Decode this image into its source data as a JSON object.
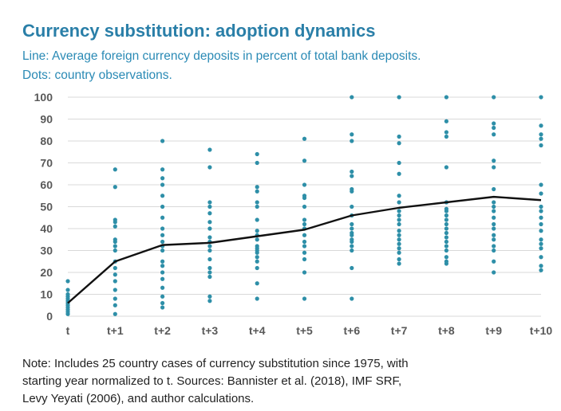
{
  "header": {
    "title": "Currency substitution: adoption dynamics",
    "subtitle_line1": "Line: Average foreign currency deposits in percent of total bank deposits.",
    "subtitle_line2": "Dots: country observations."
  },
  "note": {
    "line1": "Note: Includes 25 country cases of currency substitution since 1975, with",
    "line2": "starting year normalized to t. Sources: Bannister et al. (2018), IMF SRF,",
    "line3": "Levy Yeyati (2006), and author calculations."
  },
  "chart_data": {
    "type": "line",
    "categories": [
      "t",
      "t+1",
      "t+2",
      "t+3",
      "t+4",
      "t+5",
      "t+6",
      "t+7",
      "t+8",
      "t+9",
      "t+10"
    ],
    "ylim": [
      0,
      100
    ],
    "yticks": [
      0,
      10,
      20,
      30,
      40,
      50,
      60,
      70,
      80,
      90,
      100
    ],
    "grid": "horizontal",
    "series": [
      {
        "type": "line",
        "values": [
          6,
          25,
          32.5,
          33.5,
          36.5,
          39.5,
          46,
          49.5,
          52,
          54.5,
          53
        ]
      },
      {
        "type": "scatter",
        "points": [
          [
            [
              0,
              1
            ],
            [
              0,
              2
            ],
            [
              0,
              3
            ],
            [
              0,
              4
            ],
            [
              0,
              5
            ],
            [
              0,
              6
            ],
            [
              0,
              7
            ],
            [
              0,
              8
            ],
            [
              0,
              9
            ],
            [
              0,
              10
            ],
            [
              0,
              12
            ],
            [
              0,
              16
            ]
          ],
          [
            [
              1,
              1
            ],
            [
              1,
              5
            ],
            [
              1,
              8
            ],
            [
              1,
              12
            ],
            [
              1,
              16
            ],
            [
              1,
              19
            ],
            [
              1,
              22
            ],
            [
              1,
              25
            ],
            [
              1,
              30
            ],
            [
              1,
              32
            ],
            [
              1,
              34
            ],
            [
              1,
              35
            ],
            [
              1,
              41
            ],
            [
              1,
              43
            ],
            [
              1,
              44
            ],
            [
              1,
              59
            ],
            [
              1,
              67
            ]
          ],
          [
            [
              2,
              4
            ],
            [
              2,
              6
            ],
            [
              2,
              9
            ],
            [
              2,
              13
            ],
            [
              2,
              17
            ],
            [
              2,
              20
            ],
            [
              2,
              23
            ],
            [
              2,
              25
            ],
            [
              2,
              30
            ],
            [
              2,
              32
            ],
            [
              2,
              34
            ],
            [
              2,
              37
            ],
            [
              2,
              40
            ],
            [
              2,
              45
            ],
            [
              2,
              50
            ],
            [
              2,
              55
            ],
            [
              2,
              60
            ],
            [
              2,
              63
            ],
            [
              2,
              67
            ],
            [
              2,
              80
            ]
          ],
          [
            [
              3,
              7
            ],
            [
              3,
              9
            ],
            [
              3,
              18
            ],
            [
              3,
              20
            ],
            [
              3,
              22
            ],
            [
              3,
              26
            ],
            [
              3,
              30
            ],
            [
              3,
              32
            ],
            [
              3,
              34
            ],
            [
              3,
              36
            ],
            [
              3,
              40
            ],
            [
              3,
              43
            ],
            [
              3,
              47
            ],
            [
              3,
              50
            ],
            [
              3,
              52
            ],
            [
              3,
              68
            ],
            [
              3,
              76
            ]
          ],
          [
            [
              4,
              8
            ],
            [
              4,
              15
            ],
            [
              4,
              22
            ],
            [
              4,
              25
            ],
            [
              4,
              27
            ],
            [
              4,
              29
            ],
            [
              4,
              30
            ],
            [
              4,
              31
            ],
            [
              4,
              32
            ],
            [
              4,
              35
            ],
            [
              4,
              37
            ],
            [
              4,
              39
            ],
            [
              4,
              44
            ],
            [
              4,
              50
            ],
            [
              4,
              52
            ],
            [
              4,
              57
            ],
            [
              4,
              59
            ],
            [
              4,
              70
            ],
            [
              4,
              74
            ]
          ],
          [
            [
              5,
              8
            ],
            [
              5,
              20
            ],
            [
              5,
              26
            ],
            [
              5,
              29
            ],
            [
              5,
              32
            ],
            [
              5,
              34
            ],
            [
              5,
              37
            ],
            [
              5,
              40
            ],
            [
              5,
              42
            ],
            [
              5,
              44
            ],
            [
              5,
              50
            ],
            [
              5,
              54
            ],
            [
              5,
              55
            ],
            [
              5,
              60
            ],
            [
              5,
              71
            ],
            [
              5,
              81
            ]
          ],
          [
            [
              6,
              8
            ],
            [
              6,
              22
            ],
            [
              6,
              30
            ],
            [
              6,
              32
            ],
            [
              6,
              34
            ],
            [
              6,
              35
            ],
            [
              6,
              37
            ],
            [
              6,
              38
            ],
            [
              6,
              40
            ],
            [
              6,
              42
            ],
            [
              6,
              46
            ],
            [
              6,
              50
            ],
            [
              6,
              57
            ],
            [
              6,
              58
            ],
            [
              6,
              64
            ],
            [
              6,
              66
            ],
            [
              6,
              80
            ],
            [
              6,
              83
            ],
            [
              6,
              100
            ]
          ],
          [
            [
              7,
              24
            ],
            [
              7,
              26
            ],
            [
              7,
              29
            ],
            [
              7,
              31
            ],
            [
              7,
              33
            ],
            [
              7,
              35
            ],
            [
              7,
              37
            ],
            [
              7,
              39
            ],
            [
              7,
              42
            ],
            [
              7,
              44
            ],
            [
              7,
              46
            ],
            [
              7,
              48
            ],
            [
              7,
              52
            ],
            [
              7,
              55
            ],
            [
              7,
              65
            ],
            [
              7,
              70
            ],
            [
              7,
              79
            ],
            [
              7,
              82
            ],
            [
              7,
              100
            ]
          ],
          [
            [
              8,
              24
            ],
            [
              8,
              25
            ],
            [
              8,
              27
            ],
            [
              8,
              30
            ],
            [
              8,
              32
            ],
            [
              8,
              34
            ],
            [
              8,
              36
            ],
            [
              8,
              38
            ],
            [
              8,
              40
            ],
            [
              8,
              42
            ],
            [
              8,
              44
            ],
            [
              8,
              46
            ],
            [
              8,
              48
            ],
            [
              8,
              49
            ],
            [
              8,
              52
            ],
            [
              8,
              68
            ],
            [
              8,
              82
            ],
            [
              8,
              84
            ],
            [
              8,
              89
            ],
            [
              8,
              100
            ]
          ],
          [
            [
              9,
              20
            ],
            [
              9,
              25
            ],
            [
              9,
              30
            ],
            [
              9,
              32
            ],
            [
              9,
              35
            ],
            [
              9,
              37
            ],
            [
              9,
              40
            ],
            [
              9,
              42
            ],
            [
              9,
              45
            ],
            [
              9,
              48
            ],
            [
              9,
              50
            ],
            [
              9,
              52
            ],
            [
              9,
              58
            ],
            [
              9,
              68
            ],
            [
              9,
              71
            ],
            [
              9,
              83
            ],
            [
              9,
              86
            ],
            [
              9,
              88
            ],
            [
              9,
              100
            ]
          ],
          [
            [
              10,
              21
            ],
            [
              10,
              23
            ],
            [
              10,
              27
            ],
            [
              10,
              31
            ],
            [
              10,
              33
            ],
            [
              10,
              35
            ],
            [
              10,
              39
            ],
            [
              10,
              42
            ],
            [
              10,
              45
            ],
            [
              10,
              48
            ],
            [
              10,
              50
            ],
            [
              10,
              56
            ],
            [
              10,
              60
            ],
            [
              10,
              78
            ],
            [
              10,
              81
            ],
            [
              10,
              83
            ],
            [
              10,
              87
            ],
            [
              10,
              100
            ]
          ]
        ]
      }
    ],
    "colors": {
      "line": "#111111",
      "dots": "#2e8fa8",
      "grid": "#d9d9d9",
      "tick_text": "#595959",
      "title": "#2a7fa8",
      "subtitle": "#2a8ab5"
    }
  }
}
